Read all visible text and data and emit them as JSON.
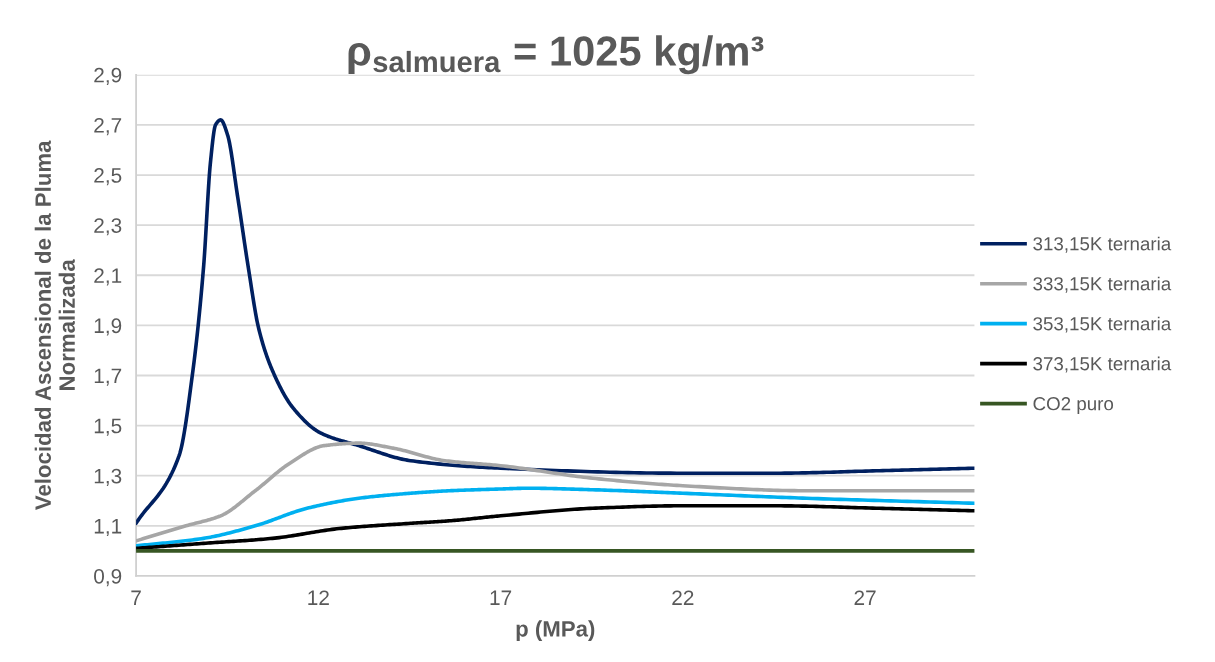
{
  "chart_data": {
    "type": "line",
    "title": "ρ$_{salmuera}$ = 1025 kg/m³",
    "xlabel": "p (MPa)",
    "ylabel": "Velocidad Ascensional de la Pluma\nNormalizada",
    "xlim": [
      7,
      30
    ],
    "xticks": [
      7,
      12,
      17,
      22,
      27
    ],
    "ylim": [
      0.9,
      2.9
    ],
    "yticks": [
      {
        "value": 0.9,
        "label": "0,9"
      },
      {
        "value": 1.1,
        "label": "1,1"
      },
      {
        "value": 1.3,
        "label": "1,3"
      },
      {
        "value": 1.5,
        "label": "1,5"
      },
      {
        "value": 1.7,
        "label": "1,7"
      },
      {
        "value": 1.9,
        "label": "1,9"
      },
      {
        "value": 2.1,
        "label": "2,1"
      },
      {
        "value": 2.3,
        "label": "2,3"
      },
      {
        "value": 2.5,
        "label": "2,5"
      },
      {
        "value": 2.7,
        "label": "2,7"
      },
      {
        "value": 2.9,
        "label": "2,9"
      }
    ],
    "grid": "y",
    "legend": "right",
    "marker": "none",
    "line_style": "solid",
    "series": [
      {
        "name": "313,15K ternaria",
        "color": "#002060",
        "x": [
          7,
          8.18,
          8.56,
          8.85,
          9.04,
          9.18,
          9.32,
          9.51,
          9.79,
          10.08,
          10.36,
          10.74,
          11.31,
          12.07,
          13.11,
          14.53,
          17,
          22,
          24.5,
          27.4,
          30
        ],
        "values": [
          1.11,
          1.38,
          1.72,
          2.13,
          2.55,
          2.7,
          2.72,
          2.66,
          2.41,
          2.13,
          1.89,
          1.72,
          1.57,
          1.47,
          1.42,
          1.36,
          1.33,
          1.31,
          1.31,
          1.32,
          1.33
        ]
      },
      {
        "name": "333,15K ternaria",
        "color": "#a6a6a6",
        "x": [
          7,
          8.37,
          9.32,
          10.27,
          11.22,
          12.16,
          13.11,
          14.05,
          15.47,
          17,
          19.53,
          22,
          25.4,
          30
        ],
        "values": [
          1.04,
          1.1,
          1.14,
          1.24,
          1.35,
          1.42,
          1.43,
          1.41,
          1.36,
          1.34,
          1.29,
          1.26,
          1.24,
          1.24
        ]
      },
      {
        "name": "353,15K ternaria",
        "color": "#00b0f0",
        "x": [
          7,
          8.85,
          10.27,
          11.69,
          13.11,
          14.53,
          15.6,
          17,
          17.76,
          19.53,
          22,
          25.4,
          30
        ],
        "values": [
          1.02,
          1.05,
          1.1,
          1.17,
          1.21,
          1.23,
          1.24,
          1.247,
          1.25,
          1.244,
          1.23,
          1.21,
          1.19
        ]
      },
      {
        "name": "373,15K ternaria",
        "color": "#000000",
        "x": [
          7,
          8.85,
          10.74,
          12.63,
          14.53,
          15.6,
          17,
          19.53,
          22,
          24.5,
          27.4,
          30
        ],
        "values": [
          1.01,
          1.03,
          1.05,
          1.09,
          1.11,
          1.12,
          1.14,
          1.17,
          1.18,
          1.18,
          1.17,
          1.16
        ]
      },
      {
        "name": "CO2 puro",
        "color": "#375623",
        "x": [
          7,
          30
        ],
        "values": [
          1.0,
          1.0
        ]
      }
    ]
  }
}
